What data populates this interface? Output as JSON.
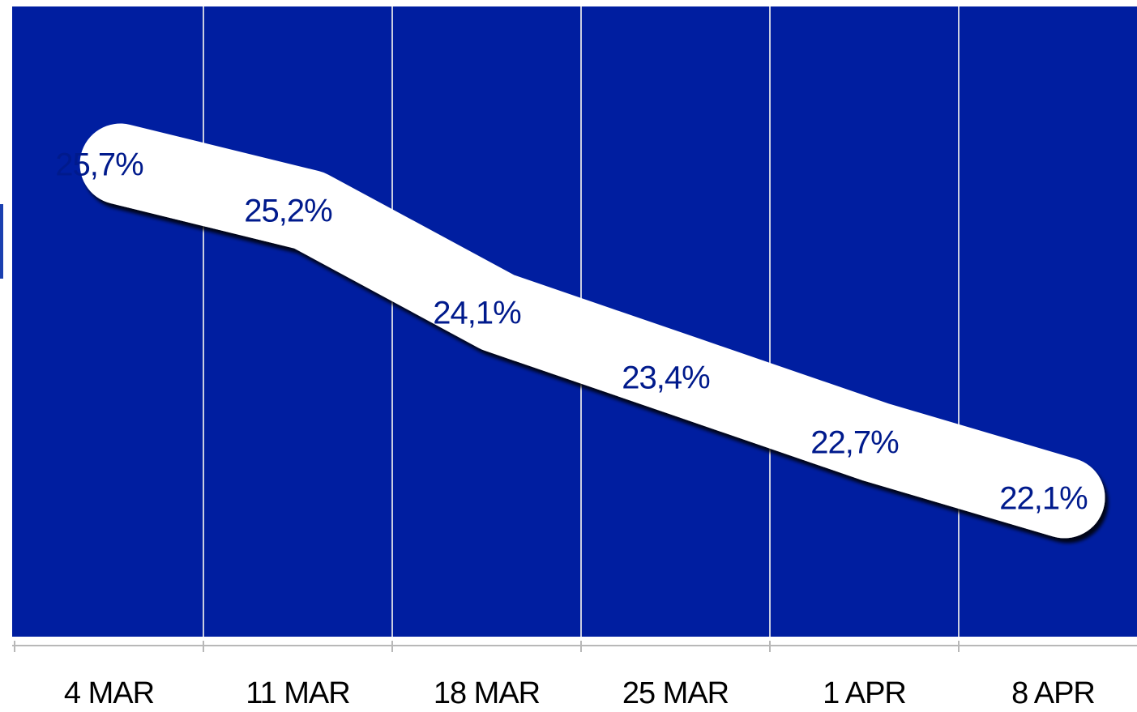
{
  "chart_data": {
    "type": "line",
    "categories": [
      "4 MAR",
      "11 MAR",
      "18 MAR",
      "25 MAR",
      "1 APR",
      "8 APR"
    ],
    "series": [
      {
        "values": [
          25.7,
          25.2,
          24.1,
          23.4,
          22.7,
          22.1
        ],
        "labels": [
          "25,7%",
          "25,2%",
          "24,1%",
          "23,4%",
          "22,7%",
          "22,1%"
        ]
      }
    ],
    "title": "",
    "xlabel": "",
    "ylabel": "",
    "ylim": [
      20.6,
      27.4
    ],
    "grid": "vertical",
    "legend": "none"
  },
  "colors": {
    "plot_background": "#001ea0",
    "band_fill": "#ffffff",
    "data_label": "#001a8c",
    "grid_line": "#c9cde0",
    "axis_line": "#b8b8b8",
    "tick_label": "#000000"
  }
}
